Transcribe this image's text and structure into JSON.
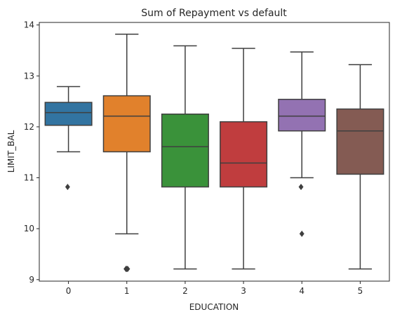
{
  "chart_data": {
    "type": "box",
    "title": "Sum of Repayment vs default",
    "xlabel": "EDUCATION",
    "ylabel": "LIMIT_BAL",
    "ylim": [
      8.97,
      14.05
    ],
    "yticks": [
      9,
      10,
      11,
      12,
      13,
      14
    ],
    "grid": false,
    "categories": [
      "0",
      "1",
      "2",
      "3",
      "4",
      "5"
    ],
    "boxes": [
      {
        "category": "0",
        "color": "#3274a1",
        "whisker_low": 11.51,
        "q1": 12.03,
        "median": 12.28,
        "q3": 12.48,
        "whisker_high": 12.79,
        "outliers": [
          10.82
        ]
      },
      {
        "category": "1",
        "color": "#e1812c",
        "whisker_low": 9.9,
        "q1": 11.51,
        "median": 12.21,
        "q3": 12.61,
        "whisker_high": 13.82,
        "outliers": [
          9.21,
          9.21,
          9.21
        ]
      },
      {
        "category": "2",
        "color": "#3a923a",
        "whisker_low": 9.21,
        "q1": 10.82,
        "median": 11.61,
        "q3": 12.25,
        "whisker_high": 13.59,
        "outliers": []
      },
      {
        "category": "3",
        "color": "#c03d3e",
        "whisker_low": 9.21,
        "q1": 10.82,
        "median": 11.29,
        "q3": 12.1,
        "whisker_high": 13.54,
        "outliers": []
      },
      {
        "category": "4",
        "color": "#9372b2",
        "whisker_low": 11.0,
        "q1": 11.92,
        "median": 12.21,
        "q3": 12.54,
        "whisker_high": 13.47,
        "outliers": [
          10.82,
          9.9
        ]
      },
      {
        "category": "5",
        "color": "#845b53",
        "whisker_low": 9.21,
        "q1": 11.07,
        "median": 11.92,
        "q3": 12.35,
        "whisker_high": 13.22,
        "outliers": []
      }
    ]
  }
}
